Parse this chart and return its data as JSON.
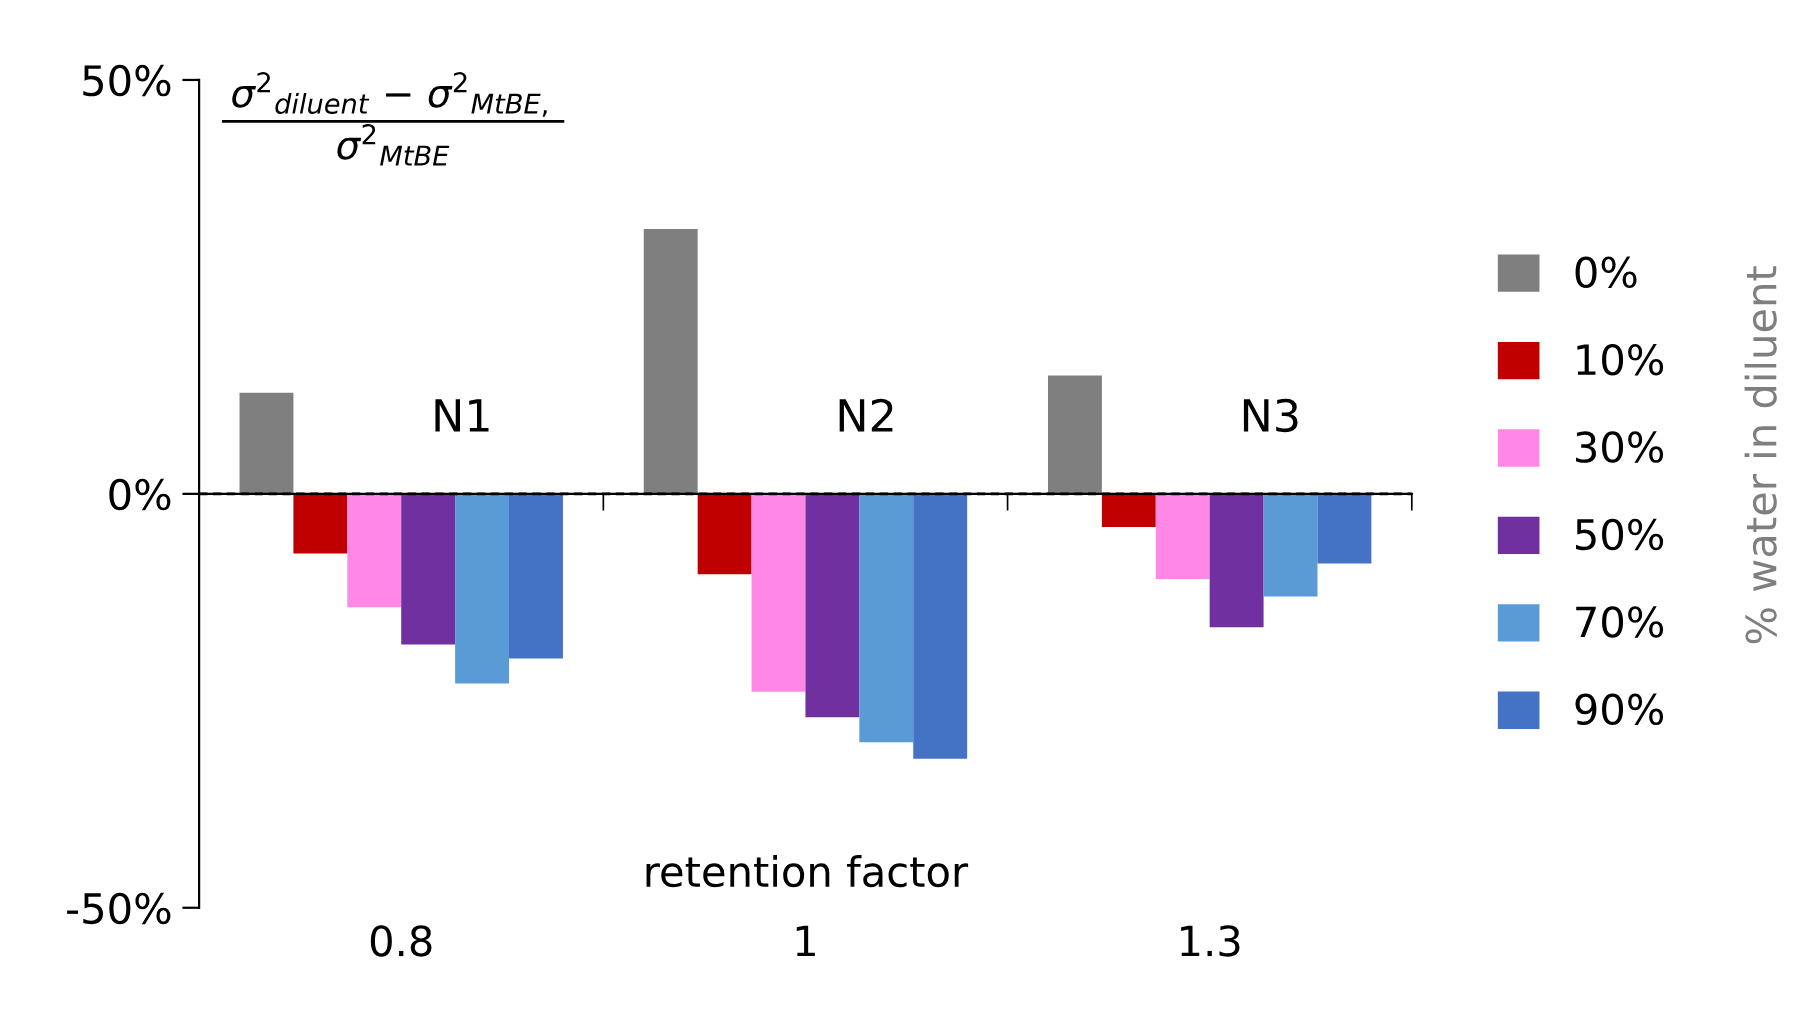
{
  "chart_data": {
    "type": "bar",
    "categories": [
      "0.8",
      "1",
      "1.3"
    ],
    "xlabel": "retention factor",
    "legend_title": "% water in diluent",
    "legend": "right",
    "ref_lines": [
      {
        "axis": "y",
        "value": 0,
        "line_style": "dashed",
        "color": "#000000"
      }
    ],
    "ylim": [
      -50,
      50
    ],
    "yticks": [
      {
        "value": -50,
        "label": "-50%"
      },
      {
        "value": 0,
        "label": "0%"
      },
      {
        "value": 50,
        "label": "50%"
      }
    ],
    "annotations": [
      "σ$^{2}$$_{diluent}$ − σ$^{2}$$_{MtBE,}$",
      "σ$^{2}$$_{MtBE}$",
      "N1",
      "N2",
      "N3"
    ],
    "series": [
      {
        "name": "0%",
        "color": "#7f7f7f",
        "values": [
          12.2,
          32,
          14.3
        ]
      },
      {
        "name": "10%",
        "color": "#c00000",
        "values": [
          -7.2,
          -9.7,
          -4
        ]
      },
      {
        "name": "30%",
        "color": "#ff88e6",
        "values": [
          -13.7,
          -23.9,
          -10.3
        ]
      },
      {
        "name": "50%",
        "color": "#7030a0",
        "values": [
          -18.2,
          -27,
          -16.1
        ]
      },
      {
        "name": "70%",
        "color": "#5b9bd5",
        "values": [
          -22.9,
          -30,
          -12.4
        ]
      },
      {
        "name": "90%",
        "color": "#4472c4",
        "values": [
          -19.9,
          -32,
          -8.4
        ]
      }
    ]
  }
}
